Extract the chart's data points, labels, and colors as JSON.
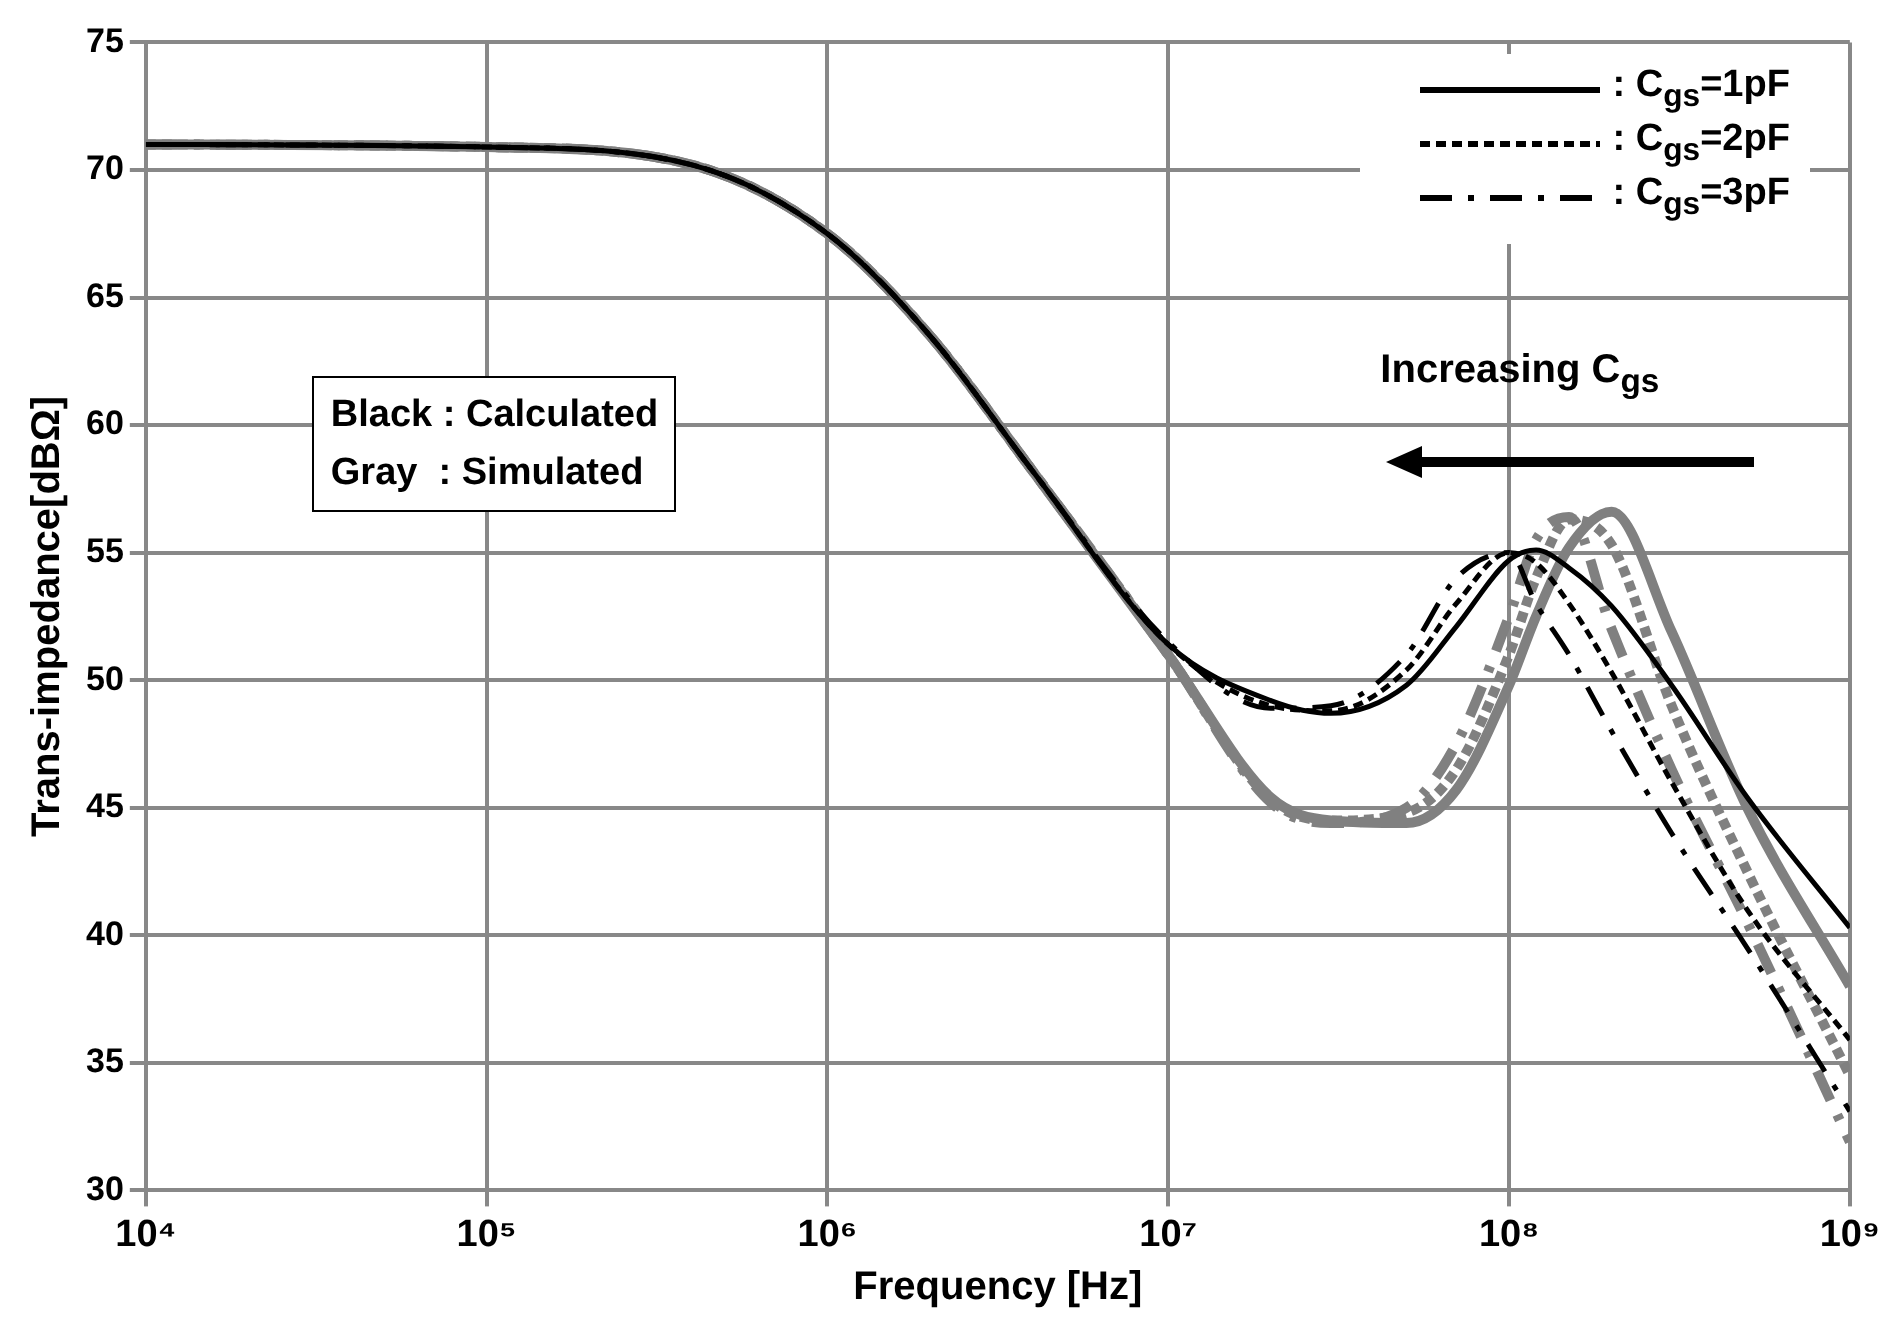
{
  "chart_data": {
    "type": "line",
    "xlabel": "Frequency [Hz]",
    "ylabel": "Trans-impedance[dBΩ]",
    "x": [
      10000,
      100000,
      400000,
      1000000,
      2000000,
      4000000,
      10000000,
      20000000,
      30000000,
      50000000,
      70000000,
      100000000,
      120000000,
      150000000,
      200000000,
      300000000,
      500000000,
      1000000000
    ],
    "series": [
      {
        "name": ": C$_{gs}$=1pF",
        "color": "#000000",
        "line_style": "solid",
        "values": [
          71,
          70.9,
          70.2,
          67.5,
          63.5,
          58.2,
          51.4,
          49.2,
          48.7,
          49.8,
          52.1,
          54.7,
          55.1,
          54.4,
          52.9,
          49.8,
          45.4,
          40.3
        ]
      },
      {
        "name": ": C$_{gs}$=2pF",
        "color": "#000000",
        "line_style": "dotted",
        "values": [
          71,
          70.9,
          70.2,
          67.5,
          63.5,
          58.2,
          51.4,
          49.0,
          48.8,
          50.4,
          53.0,
          55.0,
          54.6,
          53.0,
          50.3,
          46.0,
          41.0,
          35.9
        ]
      },
      {
        "name": ": C$_{gs}$=3pF",
        "color": "#000000",
        "line_style": "dashed",
        "values": [
          71,
          70.9,
          70.2,
          67.5,
          63.5,
          58.2,
          51.5,
          48.9,
          49.0,
          51.0,
          54.0,
          55.0,
          53.0,
          51.0,
          48.0,
          44.0,
          39.5,
          33.1
        ]
      },
      {
        "color": "#808080",
        "line_style": "solid",
        "values": [
          71,
          70.9,
          70.2,
          67.5,
          63.5,
          58.2,
          51.0,
          45.4,
          44.5,
          44.4,
          45.7,
          49.8,
          52.5,
          55.2,
          56.6,
          51.9,
          45.0,
          38.0
        ]
      },
      {
        "color": "#808080",
        "line_style": "dotted",
        "values": [
          71,
          70.9,
          70.2,
          67.5,
          63.5,
          58.2,
          51.0,
          45.3,
          44.5,
          44.8,
          46.5,
          51.0,
          54.0,
          56.3,
          55.3,
          49.0,
          42.5,
          34.5
        ]
      },
      {
        "color": "#808080",
        "line_style": "dashed",
        "values": [
          71,
          70.9,
          70.2,
          67.5,
          63.5,
          58.2,
          51.0,
          45.2,
          44.4,
          45.0,
          47.5,
          52.5,
          55.5,
          56.4,
          52.0,
          46.5,
          40.5,
          31.9
        ]
      }
    ],
    "log": "x",
    "xlim": [
      10000,
      1000000000
    ],
    "xticks": [
      {
        "value": 10000,
        "label": "10⁴"
      },
      {
        "value": 100000,
        "label": "10⁵"
      },
      {
        "value": 1000000,
        "label": "10⁶"
      },
      {
        "value": 10000000,
        "label": "10⁷"
      },
      {
        "value": 100000000,
        "label": "10⁸"
      },
      {
        "value": 1000000000,
        "label": "10⁹"
      }
    ],
    "ylim": [
      30,
      75
    ],
    "yticks": [
      30,
      35,
      40,
      45,
      50,
      55,
      60,
      65,
      70,
      75
    ],
    "grid": true,
    "legend": "top right",
    "marker": "none",
    "annotations": [
      "Black : Calculated",
      "Gray  : Simulated",
      "Increasing C$_{gs}$"
    ]
  }
}
